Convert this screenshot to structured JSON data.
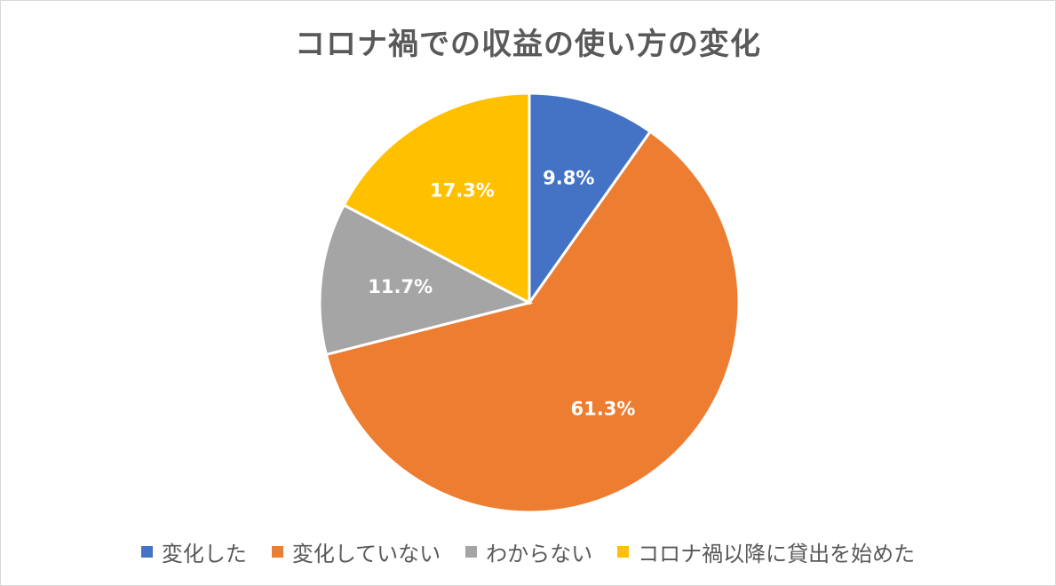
{
  "chart_data": {
    "type": "pie",
    "title": "コロナ禍での収益の使い方の変化",
    "categories": [
      "変化した",
      "変化していない",
      "わからない",
      "コロナ禍以降に貸出を始めた"
    ],
    "values": [
      9.8,
      61.3,
      11.7,
      17.3
    ],
    "data_labels": [
      "9.8%",
      "61.3%",
      "11.7%",
      "17.3%"
    ],
    "colors": [
      "#4472C4",
      "#ED7D31",
      "#A5A5A5",
      "#FFC000"
    ],
    "start_angle_deg": 0,
    "direction": "clockwise",
    "legend_position": "bottom"
  }
}
